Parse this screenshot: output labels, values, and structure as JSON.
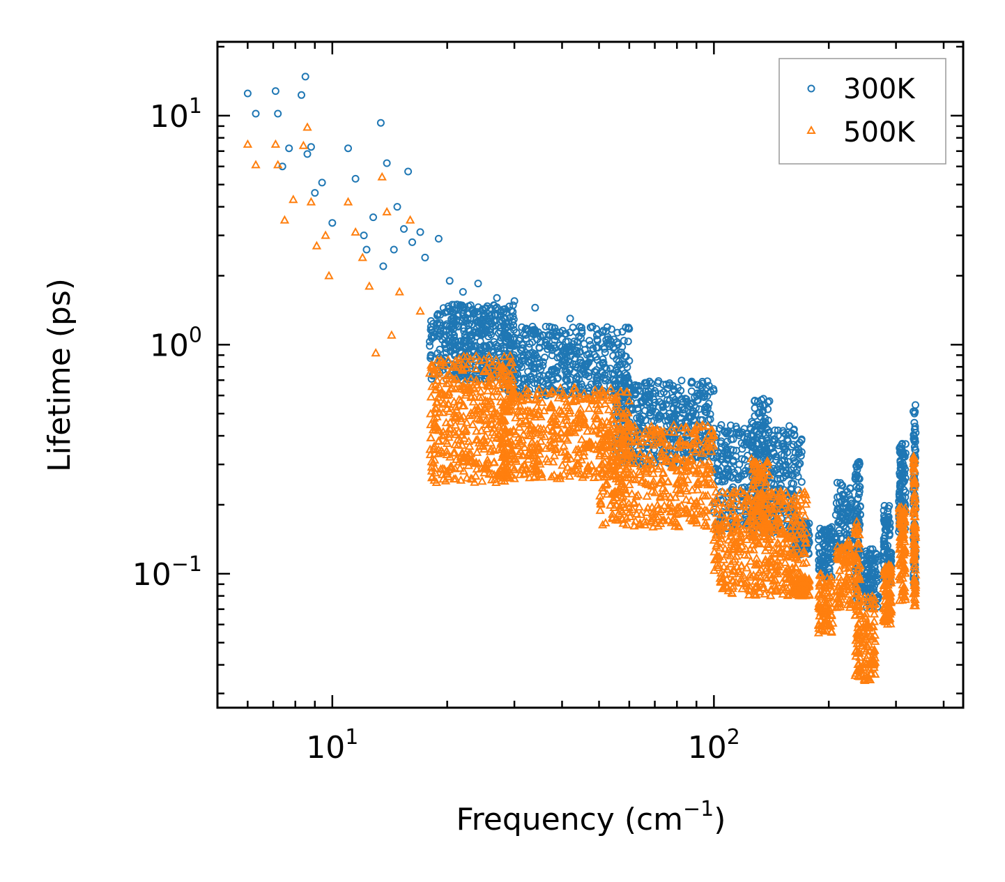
{
  "chart_data": {
    "type": "scatter",
    "title": "",
    "xlabel": "Frequency (cm",
    "xlabel_sup": "−1",
    "xlabel_end": ")",
    "ylabel": "Lifetime (ps)",
    "xscale": "log",
    "yscale": "log",
    "xlim": [
      5.0,
      450.0
    ],
    "ylim": [
      0.026,
      21.0
    ],
    "x_ticks": [
      {
        "base": "10",
        "exp": "1",
        "value": 10
      },
      {
        "base": "10",
        "exp": "2",
        "value": 100
      }
    ],
    "y_ticks": [
      {
        "base": "10",
        "exp": "1",
        "value": 10
      },
      {
        "base": "10",
        "exp": "0",
        "value": 1
      },
      {
        "base": "10",
        "exp": "−1",
        "value": 0.1
      }
    ],
    "legend_position": "top-right",
    "series": [
      {
        "name": "300K",
        "marker": "circle",
        "color": "#1f77b4",
        "sample_points": [
          [
            6.0,
            12.5
          ],
          [
            6.3,
            10.2
          ],
          [
            7.1,
            12.8
          ],
          [
            7.2,
            10.2
          ],
          [
            7.4,
            6.0
          ],
          [
            7.7,
            7.2
          ],
          [
            8.3,
            12.3
          ],
          [
            8.5,
            14.8
          ],
          [
            8.6,
            6.8
          ],
          [
            8.8,
            7.3
          ],
          [
            9.0,
            4.6
          ],
          [
            9.4,
            5.1
          ],
          [
            10.0,
            3.4
          ],
          [
            11.0,
            7.2
          ],
          [
            11.5,
            5.3
          ],
          [
            12.1,
            3.0
          ],
          [
            12.3,
            2.6
          ],
          [
            12.8,
            3.6
          ],
          [
            13.4,
            9.3
          ],
          [
            13.6,
            2.2
          ],
          [
            13.9,
            6.2
          ],
          [
            14.5,
            2.6
          ],
          [
            14.8,
            4.0
          ],
          [
            15.4,
            3.2
          ],
          [
            15.8,
            5.7
          ],
          [
            16.2,
            2.8
          ],
          [
            17.0,
            3.1
          ],
          [
            17.5,
            2.4
          ],
          [
            19.0,
            2.9
          ],
          [
            20.3,
            1.9
          ],
          [
            22.0,
            1.7
          ],
          [
            24.1,
            1.85
          ],
          [
            27.0,
            1.6
          ],
          [
            30.0,
            1.55
          ],
          [
            34.0,
            1.45
          ],
          [
            42.0,
            1.3
          ],
          [
            60.0,
            0.85
          ],
          [
            75.0,
            0.55
          ],
          [
            88.0,
            0.5
          ],
          [
            128.0,
            0.57
          ]
        ],
        "bands": [
          {
            "x": [
              18,
              30
            ],
            "y_lo": 0.7,
            "y_hi": 1.5
          },
          {
            "x": [
              28,
              60
            ],
            "y_lo": 0.6,
            "y_hi": 1.2
          },
          {
            "x": [
              55,
              100
            ],
            "y_lo": 0.3,
            "y_hi": 0.7
          },
          {
            "x": [
              100,
              170
            ],
            "y_lo": 0.15,
            "y_hi": 0.45
          }
        ],
        "clusters": [
          {
            "x": [
              125,
              140
            ],
            "y_lo": 0.2,
            "y_hi": 0.6
          },
          {
            "x": [
              160,
              178
            ],
            "y_lo": 0.12,
            "y_hi": 0.17
          },
          {
            "x": [
              188,
              205
            ],
            "y_lo": 0.095,
            "y_hi": 0.16
          },
          {
            "x": [
              208,
              230
            ],
            "y_lo": 0.12,
            "y_hi": 0.25
          },
          {
            "x": [
              234,
              242
            ],
            "y_lo": 0.075,
            "y_hi": 0.31
          },
          {
            "x": [
              245,
              270
            ],
            "y_lo": 0.07,
            "y_hi": 0.13
          },
          {
            "x": [
              278,
              292
            ],
            "y_lo": 0.09,
            "y_hi": 0.2
          },
          {
            "x": [
              305,
              318
            ],
            "y_lo": 0.15,
            "y_hi": 0.37
          },
          {
            "x": [
              333,
              338
            ],
            "y_lo": 0.085,
            "y_hi": 0.55
          }
        ]
      },
      {
        "name": "500K",
        "marker": "triangle",
        "color": "#ff7f0e",
        "sample_points": [
          [
            6.0,
            7.5
          ],
          [
            6.3,
            6.1
          ],
          [
            7.1,
            7.5
          ],
          [
            7.2,
            6.1
          ],
          [
            7.5,
            3.5
          ],
          [
            7.9,
            4.3
          ],
          [
            8.4,
            7.4
          ],
          [
            8.6,
            8.9
          ],
          [
            8.8,
            4.2
          ],
          [
            9.1,
            2.7
          ],
          [
            9.6,
            3.0
          ],
          [
            9.8,
            2.0
          ],
          [
            11.0,
            4.2
          ],
          [
            11.5,
            3.1
          ],
          [
            12.0,
            2.4
          ],
          [
            12.5,
            1.8
          ],
          [
            13.0,
            0.92
          ],
          [
            13.5,
            5.4
          ],
          [
            13.9,
            3.8
          ],
          [
            14.3,
            1.1
          ],
          [
            15.0,
            1.7
          ],
          [
            16.0,
            3.5
          ],
          [
            17.0,
            1.4
          ],
          [
            18.0,
            0.75
          ],
          [
            20.0,
            0.6
          ],
          [
            25.0,
            0.35
          ],
          [
            30.0,
            0.26
          ],
          [
            40.0,
            0.6
          ],
          [
            60.0,
            0.45
          ],
          [
            100.0,
            0.14
          ],
          [
            130.0,
            0.28
          ]
        ],
        "bands": [
          {
            "x": [
              18,
              30
            ],
            "y_lo": 0.25,
            "y_hi": 0.9
          },
          {
            "x": [
              28,
              60
            ],
            "y_lo": 0.26,
            "y_hi": 0.65
          },
          {
            "x": [
              50,
              100
            ],
            "y_lo": 0.16,
            "y_hi": 0.45
          },
          {
            "x": [
              100,
              175
            ],
            "y_lo": 0.08,
            "y_hi": 0.23
          }
        ],
        "clusters": [
          {
            "x": [
              125,
              140
            ],
            "y_lo": 0.13,
            "y_hi": 0.33
          },
          {
            "x": [
              160,
              178
            ],
            "y_lo": 0.08,
            "y_hi": 0.095
          },
          {
            "x": [
              188,
              205
            ],
            "y_lo": 0.055,
            "y_hi": 0.1
          },
          {
            "x": [
              208,
              230
            ],
            "y_lo": 0.07,
            "y_hi": 0.14
          },
          {
            "x": [
              234,
              242
            ],
            "y_lo": 0.035,
            "y_hi": 0.18
          },
          {
            "x": [
              245,
              265
            ],
            "y_lo": 0.034,
            "y_hi": 0.08
          },
          {
            "x": [
              278,
              292
            ],
            "y_lo": 0.06,
            "y_hi": 0.11
          },
          {
            "x": [
              305,
              318
            ],
            "y_lo": 0.075,
            "y_hi": 0.2
          },
          {
            "x": [
              333,
              338
            ],
            "y_lo": 0.07,
            "y_hi": 0.33
          }
        ]
      }
    ]
  }
}
